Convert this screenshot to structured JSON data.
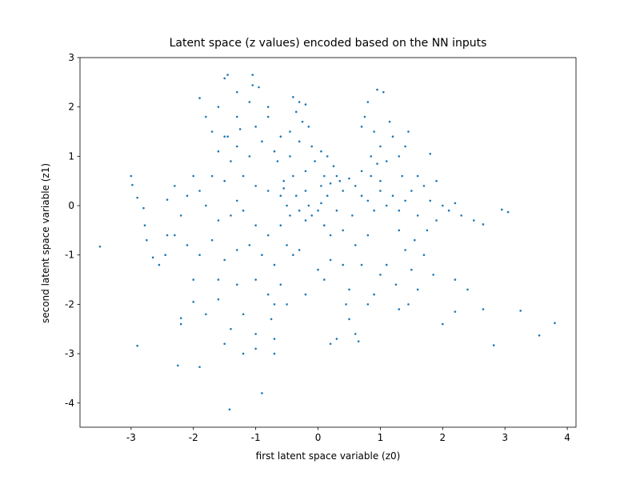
{
  "chart_data": {
    "type": "scatter",
    "title": "Latent space (z values) encoded based on the NN inputs",
    "x_label": "first latent space variable (z0)",
    "y_label": "second latent space variable (z1)",
    "color": "#1f77b4",
    "xlim": [
      -3.82,
      4.14
    ],
    "ylim": [
      -4.49,
      3.0
    ],
    "xticks": [
      -3,
      -2,
      -1,
      0,
      1,
      2,
      3,
      4
    ],
    "yticks": [
      -4,
      -3,
      -2,
      -1,
      0,
      1,
      2,
      3
    ],
    "x": [
      -3.5,
      -2.9,
      -1.42,
      -0.9,
      -2.25,
      -1.9,
      3.8,
      3.55,
      3.25,
      2.82,
      2.65,
      3.05,
      2.95,
      2.65,
      -3.0,
      -2.98,
      -2.9,
      -2.8,
      -2.78,
      -2.75,
      -2.65,
      -2.55,
      -2.45,
      -2.42,
      -2.42,
      -1.45,
      -1.5,
      -1.05,
      -1.05,
      -0.95,
      0.95,
      1.05,
      -1.9,
      -2.2,
      -2.2,
      -2.0,
      2.2,
      2.0,
      2.4,
      2.2,
      -0.4,
      -0.3,
      -0.2,
      -0.35,
      -0.25,
      -0.45,
      -0.15,
      -0.3,
      -0.1,
      0.05,
      0.15,
      0.25,
      -0.05,
      -0.2,
      -0.4,
      -0.55,
      -0.6,
      -0.5,
      -0.3,
      -0.2,
      -0.1,
      0.05,
      0.1,
      0.2,
      0.3,
      0.4,
      0.35,
      0.5,
      0.6,
      0.7,
      0.8,
      0.9,
      1.0,
      1.1,
      1.2,
      1.3,
      1.4,
      1.5,
      1.6,
      1.7,
      1.8,
      1.9,
      2.0,
      2.1,
      2.3,
      2.5,
      2.2,
      1.75,
      1.55,
      1.3,
      0.8,
      0.75,
      0.9,
      1.0,
      0.85,
      1.1,
      1.15,
      1.2,
      0.7,
      0.95,
      1.4,
      1.45,
      1.8,
      1.3,
      0.7,
      0.85,
      1.0,
      1.6,
      1.9,
      1.35,
      -1.0,
      -0.8,
      -0.9,
      -0.7,
      -1.1,
      -1.3,
      -1.5,
      -1.6,
      -1.4,
      -1.2,
      -1.0,
      -0.8,
      -1.5,
      -1.7,
      -1.9,
      -2.1,
      -2.0,
      -1.8,
      -1.6,
      -1.4,
      -1.2,
      -1.0,
      -0.8,
      -0.6,
      -0.5,
      -0.4,
      -0.3,
      -0.7,
      -0.9,
      -1.1,
      -1.3,
      -1.5,
      -1.7,
      -1.9,
      -2.1,
      -1.6,
      -1.3,
      -1.0,
      -0.8,
      -0.6,
      -0.7,
      -0.75,
      -0.7,
      -0.7,
      -1.2,
      -1.4,
      -1.0,
      -0.5,
      -0.2,
      0.0,
      0.1,
      0.2,
      0.4,
      0.5,
      0.45,
      0.5,
      0.6,
      0.65,
      0.3,
      0.2,
      0.8,
      0.9,
      1.0,
      1.1,
      1.25,
      1.3,
      1.4,
      1.5,
      1.6,
      1.7,
      1.45,
      1.85,
      0.7,
      0.6,
      0.8,
      0.4,
      0.55,
      0.3,
      0.2,
      0.1,
      -1.3,
      -1.1,
      -0.8,
      -1.3,
      -1.6,
      -1.7,
      -1.8,
      -1.45,
      -1.25,
      -0.6,
      -0.65,
      -0.45,
      -0.2,
      -0.35,
      -0.15,
      0.0,
      -0.45,
      -0.55,
      0.15,
      0.05,
      -1.2,
      -1.0,
      -1.5,
      -1.6,
      -1.8,
      -2.0,
      -2.3,
      -2.2,
      -2.3,
      -1.3
    ],
    "values": [
      -0.83,
      -2.84,
      -4.13,
      -3.8,
      -3.24,
      -3.27,
      -2.38,
      -2.63,
      -2.13,
      -2.83,
      -2.1,
      -0.13,
      -0.08,
      -0.38,
      0.6,
      0.42,
      0.16,
      -0.05,
      -0.4,
      -0.7,
      -1.05,
      -1.2,
      -1.0,
      -0.6,
      0.12,
      2.65,
      2.58,
      2.65,
      2.44,
      2.4,
      2.35,
      2.3,
      2.18,
      -2.4,
      -2.28,
      -1.95,
      -2.15,
      -2.4,
      -1.7,
      -1.5,
      2.2,
      2.1,
      2.05,
      1.9,
      1.7,
      1.5,
      1.6,
      1.3,
      1.2,
      1.1,
      1.0,
      0.8,
      0.9,
      0.7,
      0.6,
      0.5,
      0.2,
      0.0,
      -0.1,
      -0.3,
      -0.2,
      0.05,
      -0.4,
      -0.6,
      -0.1,
      0.3,
      0.5,
      0.55,
      0.4,
      0.2,
      0.1,
      -0.1,
      0.3,
      0.0,
      0.2,
      -0.1,
      0.1,
      0.3,
      -0.2,
      0.4,
      0.1,
      -0.3,
      0.0,
      -0.1,
      -0.2,
      -0.3,
      0.05,
      -0.5,
      -0.7,
      -0.5,
      2.1,
      1.8,
      1.5,
      1.2,
      1.0,
      0.9,
      1.7,
      1.4,
      1.6,
      0.85,
      1.2,
      1.5,
      1.05,
      1.0,
      0.7,
      0.6,
      0.5,
      0.6,
      0.5,
      0.6,
      1.6,
      1.8,
      1.3,
      1.1,
      1.0,
      1.2,
      1.4,
      1.1,
      0.9,
      0.6,
      0.4,
      0.3,
      0.5,
      0.6,
      0.3,
      0.2,
      0.6,
      0.0,
      -0.3,
      -0.2,
      -0.1,
      -0.4,
      -0.6,
      -0.4,
      -0.8,
      -1.0,
      -0.9,
      -1.2,
      -1.0,
      -0.8,
      -0.9,
      -1.1,
      -0.7,
      -1.0,
      -0.8,
      -1.5,
      -1.6,
      -1.5,
      -1.8,
      -1.6,
      -2.0,
      -2.3,
      -2.7,
      -3.0,
      -2.2,
      -2.5,
      -2.6,
      -2.0,
      -1.8,
      -1.3,
      -1.5,
      -1.1,
      -1.2,
      -1.7,
      -2.0,
      -2.3,
      -2.6,
      -2.75,
      -2.7,
      -2.8,
      -2.0,
      -1.8,
      -1.4,
      -1.2,
      -1.6,
      -2.1,
      -0.9,
      -1.3,
      -1.7,
      -1.0,
      -2.0,
      -1.4,
      -1.2,
      -0.8,
      -0.6,
      -0.5,
      -0.2,
      0.6,
      0.45,
      0.6,
      2.3,
      2.1,
      2.0,
      1.8,
      2.0,
      1.5,
      1.8,
      1.4,
      1.55,
      1.4,
      0.9,
      1.0,
      0.3,
      0.2,
      0.0,
      -0.1,
      -0.2,
      0.35,
      0.2,
      0.4,
      -3.0,
      -2.9,
      -2.8,
      -1.9,
      -2.2,
      -1.5,
      -0.6,
      -0.2,
      0.4,
      0.1
    ]
  }
}
